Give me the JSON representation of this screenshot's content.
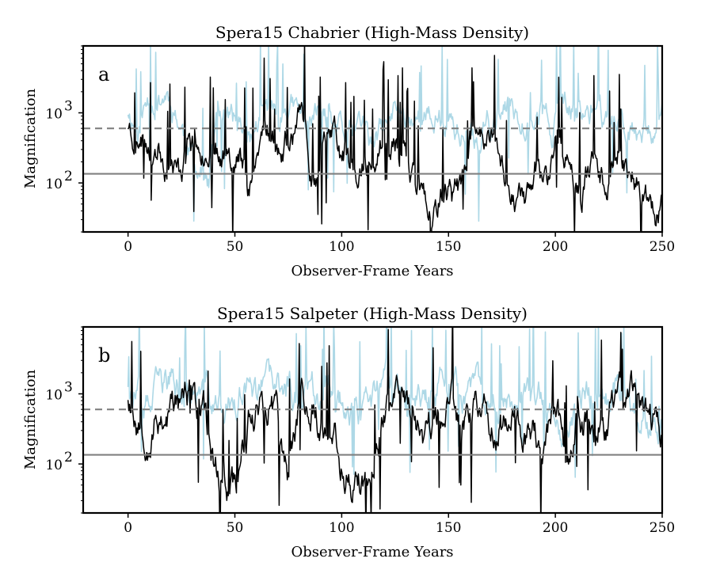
{
  "chart_data": [
    {
      "type": "line",
      "panel_label": "a",
      "title": "Spera15 Chabrier (High-Mass Density)",
      "xlabel": "Observer-Frame Years",
      "ylabel": "Magnification",
      "xlim": [
        -21,
        250
      ],
      "ylim": [
        20,
        9000
      ],
      "yscale": "log",
      "x_ticks": [
        0,
        50,
        100,
        150,
        200,
        250
      ],
      "y_ticks": [
        {
          "value": 100,
          "label": "10",
          "exp": "2"
        },
        {
          "value": 1000,
          "label": "10",
          "exp": "3"
        }
      ],
      "reference_lines": [
        {
          "style": "dashed",
          "color": "#808080",
          "y": 600
        },
        {
          "style": "solid",
          "color": "#808080",
          "y": 135
        }
      ],
      "series": [
        {
          "color": "#add8e6",
          "seed": 11,
          "x_start": 0,
          "x_end": 250,
          "step": 0.35,
          "knots": [
            [
              0,
              1100
            ],
            [
              5,
              600
            ],
            [
              10,
              1700
            ],
            [
              14,
              1500
            ],
            [
              18,
              2000
            ],
            [
              22,
              1200
            ],
            [
              26,
              500
            ],
            [
              30,
              260
            ],
            [
              34,
              160
            ],
            [
              38,
              80
            ],
            [
              42,
              1400
            ],
            [
              46,
              950
            ],
            [
              50,
              700
            ],
            [
              54,
              600
            ],
            [
              58,
              450
            ],
            [
              62,
              900
            ],
            [
              66,
              1100
            ],
            [
              70,
              900
            ],
            [
              74,
              1300
            ],
            [
              78,
              1000
            ],
            [
              82,
              850
            ],
            [
              86,
              700
            ],
            [
              90,
              1100
            ],
            [
              94,
              800
            ],
            [
              98,
              550
            ],
            [
              102,
              450
            ],
            [
              106,
              500
            ],
            [
              110,
              800
            ],
            [
              114,
              300
            ],
            [
              118,
              500
            ],
            [
              122,
              700
            ],
            [
              126,
              1200
            ],
            [
              130,
              1000
            ],
            [
              134,
              900
            ],
            [
              138,
              800
            ],
            [
              142,
              700
            ],
            [
              146,
              900
            ],
            [
              150,
              800
            ],
            [
              154,
              600
            ],
            [
              158,
              420
            ],
            [
              162,
              350
            ],
            [
              166,
              500
            ],
            [
              170,
              700
            ],
            [
              174,
              1000
            ],
            [
              178,
              1200
            ],
            [
              182,
              1100
            ],
            [
              186,
              1000
            ],
            [
              190,
              850
            ],
            [
              194,
              1100
            ],
            [
              198,
              600
            ],
            [
              202,
              1300
            ],
            [
              206,
              900
            ],
            [
              210,
              1000
            ],
            [
              214,
              800
            ],
            [
              218,
              1300
            ],
            [
              222,
              900
            ],
            [
              226,
              700
            ],
            [
              230,
              550
            ],
            [
              234,
              800
            ],
            [
              238,
              700
            ],
            [
              242,
              800
            ],
            [
              246,
              700
            ],
            [
              250,
              800
            ]
          ],
          "noise": 0.28,
          "spike_rate": 0.045,
          "dip_rate": 0.012
        },
        {
          "color": "#000000",
          "seed": 23,
          "x_start": 0,
          "x_end": 250,
          "step": 0.35,
          "knots": [
            [
              0,
              700
            ],
            [
              4,
              500
            ],
            [
              8,
              450
            ],
            [
              12,
              500
            ],
            [
              16,
              300
            ],
            [
              20,
              180
            ],
            [
              24,
              130
            ],
            [
              28,
              400
            ],
            [
              32,
              420
            ],
            [
              36,
              380
            ],
            [
              40,
              360
            ],
            [
              44,
              320
            ],
            [
              48,
              300
            ],
            [
              52,
              280
            ],
            [
              56,
              120
            ],
            [
              60,
              220
            ],
            [
              64,
              700
            ],
            [
              68,
              500
            ],
            [
              72,
              260
            ],
            [
              76,
              450
            ],
            [
              80,
              700
            ],
            [
              84,
              320
            ],
            [
              88,
              80
            ],
            [
              92,
              420
            ],
            [
              96,
              560
            ],
            [
              100,
              260
            ],
            [
              104,
              200
            ],
            [
              108,
              140
            ],
            [
              112,
              160
            ],
            [
              116,
              260
            ],
            [
              120,
              350
            ],
            [
              124,
              320
            ],
            [
              128,
              270
            ],
            [
              132,
              180
            ],
            [
              136,
              90
            ],
            [
              140,
              45
            ],
            [
              144,
              40
            ],
            [
              148,
              80
            ],
            [
              152,
              60
            ],
            [
              156,
              90
            ],
            [
              160,
              350
            ],
            [
              164,
              800
            ],
            [
              168,
              600
            ],
            [
              172,
              300
            ],
            [
              176,
              150
            ],
            [
              180,
              90
            ],
            [
              184,
              60
            ],
            [
              188,
              50
            ],
            [
              192,
              200
            ],
            [
              196,
              110
            ],
            [
              200,
              450
            ],
            [
              204,
              300
            ],
            [
              208,
              100
            ],
            [
              212,
              70
            ],
            [
              216,
              150
            ],
            [
              220,
              180
            ],
            [
              224,
              110
            ],
            [
              228,
              350
            ],
            [
              232,
              250
            ],
            [
              236,
              120
            ],
            [
              240,
              70
            ],
            [
              244,
              45
            ],
            [
              248,
              40
            ],
            [
              250,
              40
            ]
          ],
          "noise": 0.32,
          "spike_rate": 0.05,
          "dip_rate": 0.03
        }
      ]
    },
    {
      "type": "line",
      "panel_label": "b",
      "title": "Spera15 Salpeter (High-Mass Density)",
      "xlabel": "Observer-Frame Years",
      "ylabel": "Magnification",
      "xlim": [
        -21,
        250
      ],
      "ylim": [
        20,
        9000
      ],
      "yscale": "log",
      "x_ticks": [
        0,
        50,
        100,
        150,
        200,
        250
      ],
      "y_ticks": [
        {
          "value": 100,
          "label": "10",
          "exp": "2"
        },
        {
          "value": 1000,
          "label": "10",
          "exp": "3"
        }
      ],
      "reference_lines": [
        {
          "style": "dashed",
          "color": "#808080",
          "y": 600
        },
        {
          "style": "solid",
          "color": "#808080",
          "y": 135
        }
      ],
      "series": [
        {
          "color": "#add8e6",
          "seed": 37,
          "x_start": 0,
          "x_end": 250,
          "step": 0.35,
          "knots": [
            [
              0,
              1500
            ],
            [
              5,
              800
            ],
            [
              10,
              600
            ],
            [
              15,
              1200
            ],
            [
              20,
              1500
            ],
            [
              25,
              900
            ],
            [
              30,
              800
            ],
            [
              35,
              1000
            ],
            [
              40,
              700
            ],
            [
              45,
              500
            ],
            [
              50,
              800
            ],
            [
              55,
              1100
            ],
            [
              60,
              900
            ],
            [
              65,
              1300
            ],
            [
              70,
              1000
            ],
            [
              75,
              1200
            ],
            [
              80,
              900
            ],
            [
              85,
              1000
            ],
            [
              90,
              1200
            ],
            [
              95,
              1300
            ],
            [
              100,
              900
            ],
            [
              105,
              600
            ],
            [
              110,
              400
            ],
            [
              115,
              800
            ],
            [
              120,
              1100
            ],
            [
              125,
              1300
            ],
            [
              130,
              1000
            ],
            [
              135,
              900
            ],
            [
              140,
              800
            ],
            [
              145,
              1100
            ],
            [
              150,
              1200
            ],
            [
              155,
              900
            ],
            [
              160,
              1000
            ],
            [
              165,
              1200
            ],
            [
              170,
              800
            ],
            [
              175,
              900
            ],
            [
              180,
              1000
            ],
            [
              185,
              900
            ],
            [
              190,
              800
            ],
            [
              195,
              600
            ],
            [
              200,
              700
            ],
            [
              205,
              300
            ],
            [
              210,
              800
            ],
            [
              215,
              1100
            ],
            [
              220,
              900
            ],
            [
              225,
              1000
            ],
            [
              230,
              1200
            ],
            [
              235,
              700
            ],
            [
              240,
              600
            ],
            [
              245,
              400
            ],
            [
              250,
              400
            ]
          ],
          "noise": 0.33,
          "spike_rate": 0.05,
          "dip_rate": 0.018
        },
        {
          "color": "#000000",
          "seed": 53,
          "x_start": 0,
          "x_end": 250,
          "step": 0.35,
          "knots": [
            [
              0,
              1000
            ],
            [
              5,
              450
            ],
            [
              10,
              300
            ],
            [
              15,
              500
            ],
            [
              20,
              600
            ],
            [
              25,
              800
            ],
            [
              30,
              900
            ],
            [
              35,
              500
            ],
            [
              40,
              120
            ],
            [
              45,
              60
            ],
            [
              50,
              40
            ],
            [
              55,
              250
            ],
            [
              60,
              900
            ],
            [
              65,
              700
            ],
            [
              70,
              600
            ],
            [
              75,
              60
            ],
            [
              80,
              900
            ],
            [
              85,
              700
            ],
            [
              90,
              500
            ],
            [
              95,
              300
            ],
            [
              100,
              100
            ],
            [
              105,
              60
            ],
            [
              110,
              40
            ],
            [
              115,
              200
            ],
            [
              120,
              600
            ],
            [
              125,
              900
            ],
            [
              130,
              700
            ],
            [
              135,
              400
            ],
            [
              140,
              250
            ],
            [
              145,
              600
            ],
            [
              150,
              800
            ],
            [
              155,
              500
            ],
            [
              160,
              700
            ],
            [
              165,
              800
            ],
            [
              170,
              400
            ],
            [
              175,
              350
            ],
            [
              180,
              500
            ],
            [
              185,
              300
            ],
            [
              190,
              350
            ],
            [
              195,
              250
            ],
            [
              200,
              450
            ],
            [
              205,
              150
            ],
            [
              210,
              500
            ],
            [
              215,
              350
            ],
            [
              220,
              300
            ],
            [
              225,
              400
            ],
            [
              230,
              600
            ],
            [
              235,
              1000
            ],
            [
              240,
              600
            ],
            [
              245,
              400
            ],
            [
              250,
              250
            ]
          ],
          "noise": 0.38,
          "spike_rate": 0.05,
          "dip_rate": 0.03
        }
      ]
    }
  ]
}
